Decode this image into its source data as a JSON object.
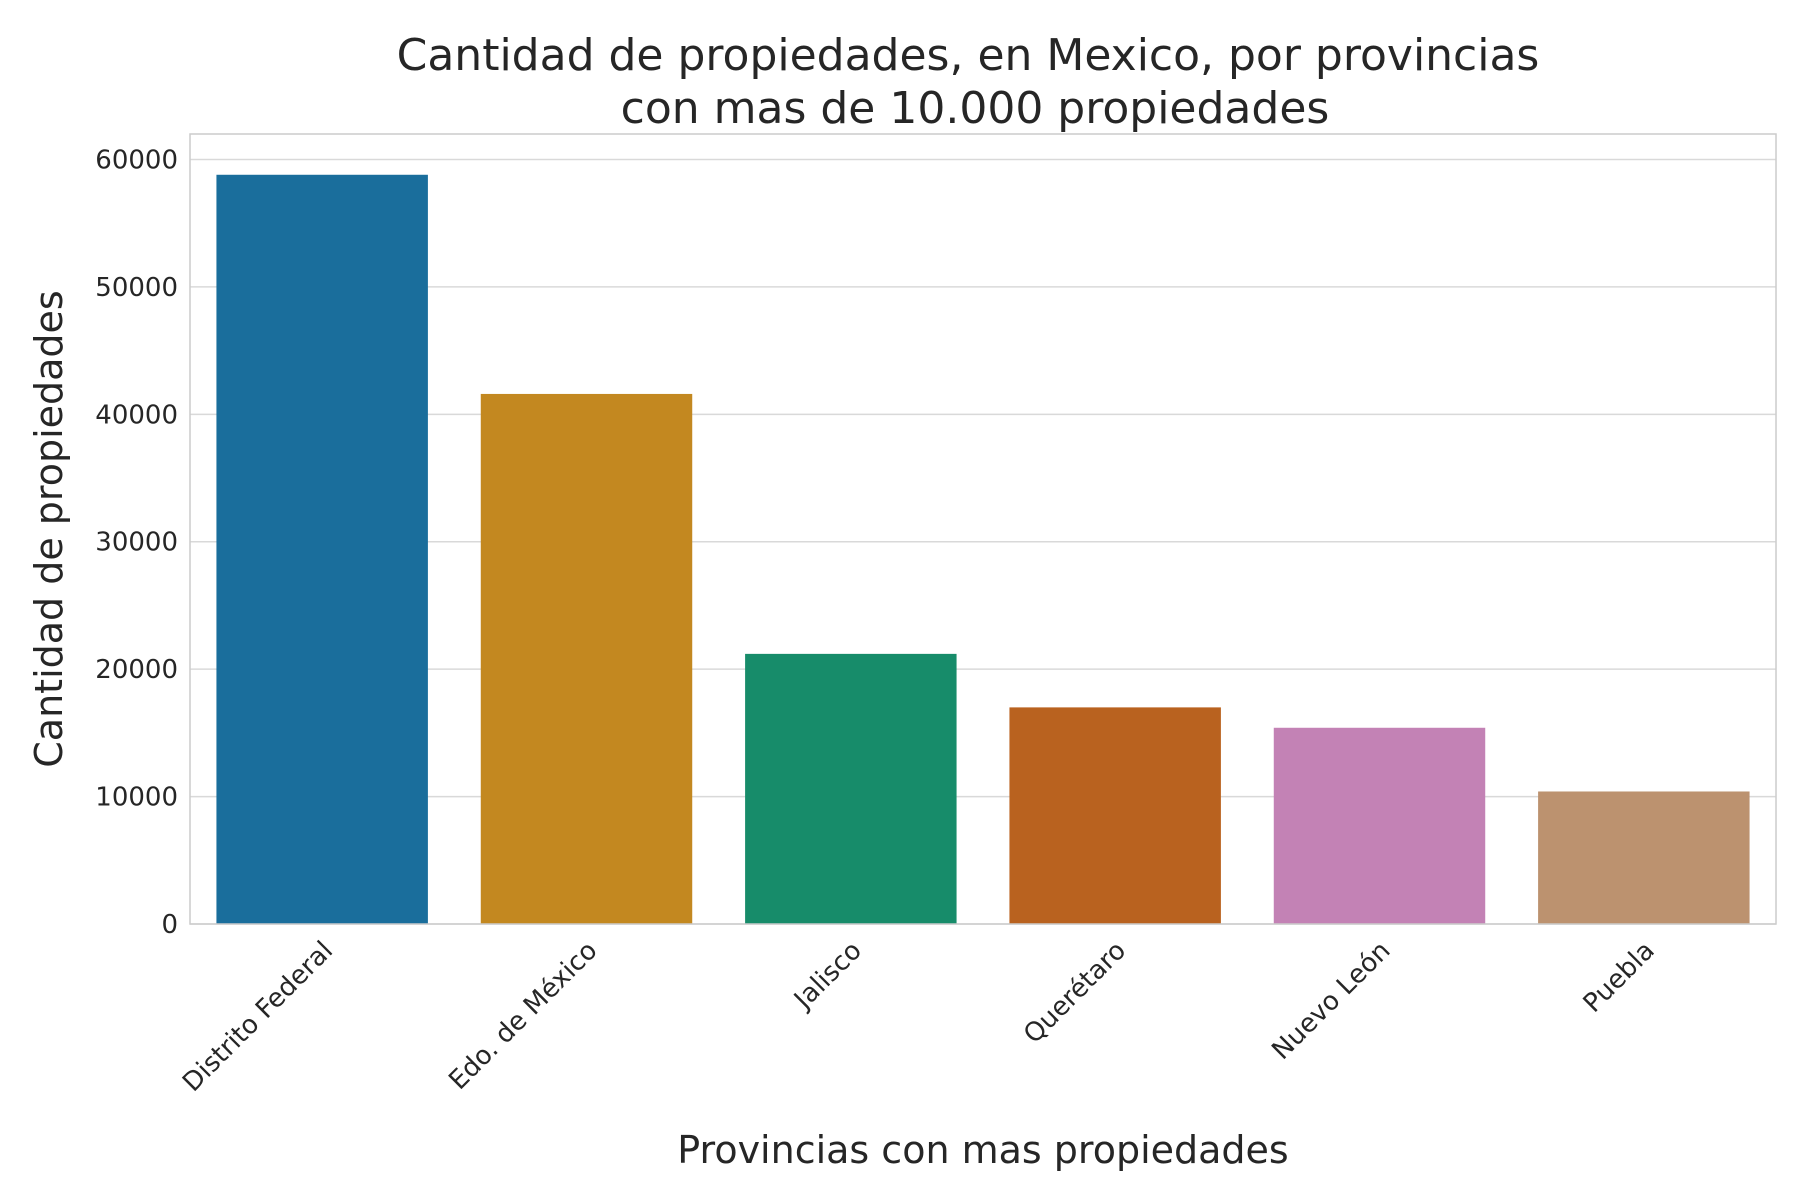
{
  "chart_data": {
    "type": "bar",
    "title": "Cantidad de propiedades, en Mexico, por provincias\ncon mas de 10.000 propiedades",
    "xlabel": "Provincias con mas propiedades",
    "ylabel": "Cantidad de propiedades",
    "categories": [
      "Distrito Federal",
      "Edo. de México",
      "Jalisco",
      "Querétaro",
      "Nuevo León",
      "Puebla"
    ],
    "values": [
      58800,
      41600,
      21200,
      17000,
      15400,
      10400
    ],
    "colors": [
      "#1a6e9c",
      "#c38820",
      "#178c6a",
      "#b9621f",
      "#c382b5",
      "#bc926f"
    ],
    "ylim": [
      0,
      62000
    ],
    "yticks": [
      0,
      10000,
      20000,
      30000,
      40000,
      50000,
      60000
    ],
    "grid": true,
    "legend": "none"
  }
}
